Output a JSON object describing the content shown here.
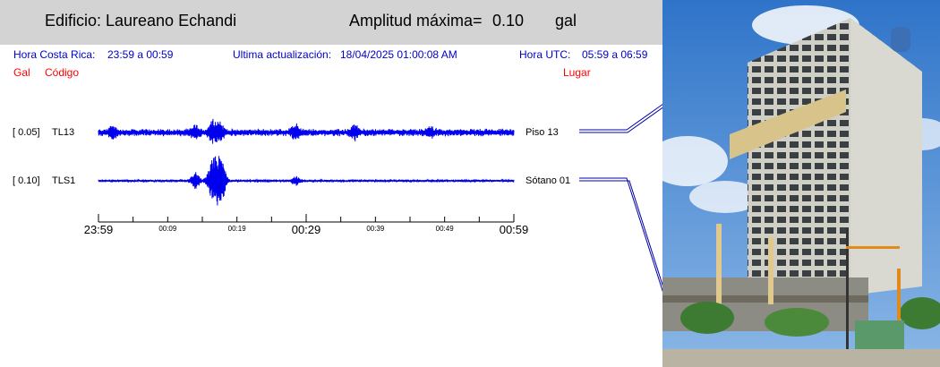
{
  "header": {
    "building_label": "Edificio:",
    "building_name": "Laureano Echandi",
    "amplitude_label": "Amplitud máxima=",
    "amplitude_value": "0.10",
    "amplitude_unit": "gal"
  },
  "info": {
    "local_label": "Hora Costa Rica:",
    "local_range": "23:59 a 00:59",
    "update_label": "Ultima actualización:",
    "update_value": "18/04/2025 01:00:08 AM",
    "utc_label": "Hora UTC:",
    "utc_range": "05:59 a 06:59"
  },
  "columns": {
    "gal": "Gal",
    "code": "Código",
    "place": "Lugar"
  },
  "colors": {
    "trace": "#0000ee",
    "header_bg": "#d3d3d3",
    "info_text": "#0000cc",
    "column_text": "#ff0000"
  },
  "chart_data": {
    "type": "line",
    "x_range_minutes": [
      0,
      60
    ],
    "time_ticks": [
      {
        "minute": 0,
        "label": "23:59",
        "major": true
      },
      {
        "minute": 10,
        "label": "00:09",
        "major": false
      },
      {
        "minute": 20,
        "label": "00:19",
        "major": false
      },
      {
        "minute": 30,
        "label": "00:29",
        "major": true
      },
      {
        "minute": 40,
        "label": "00:39",
        "major": false
      },
      {
        "minute": 50,
        "label": "00:49",
        "major": false
      },
      {
        "minute": 60,
        "label": "00:59",
        "major": true
      }
    ],
    "series": [
      {
        "name": "TL13",
        "scale": "[   0.05]",
        "place": "Piso 13",
        "bursts": [
          {
            "minute": 16.5,
            "amplitude": 0.9
          },
          {
            "minute": 17.5,
            "amplitude": 0.7
          },
          {
            "minute": 28.5,
            "amplitude": 0.55
          },
          {
            "minute": 37.0,
            "amplitude": 0.5
          },
          {
            "minute": 2.0,
            "amplitude": 0.4
          },
          {
            "minute": 14.0,
            "amplitude": 0.45
          },
          {
            "minute": 48.0,
            "amplitude": 0.35
          }
        ]
      },
      {
        "name": "TLS1",
        "scale": "[   0.10]",
        "place": "Sótano 01",
        "bursts": [
          {
            "minute": 17.0,
            "amplitude": 1.0
          },
          {
            "minute": 17.8,
            "amplitude": 0.85
          },
          {
            "minute": 16.2,
            "amplitude": 0.6
          },
          {
            "minute": 14.0,
            "amplitude": 0.35
          },
          {
            "minute": 28.5,
            "amplitude": 0.18
          }
        ]
      }
    ]
  },
  "photo": {
    "icon": "building-photo"
  }
}
